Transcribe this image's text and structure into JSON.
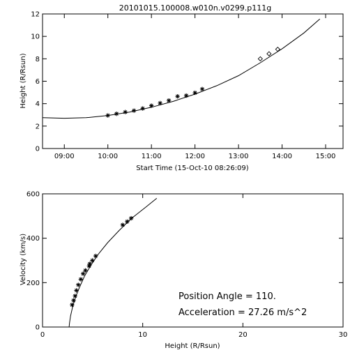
{
  "chart_data": [
    {
      "type": "scatter",
      "title": "20101015.100008.w010n.v0299.p111g",
      "xlabel": "Start Time (15-Oct-10 08:26:09)",
      "ylabel": "Height (R/Rsun)",
      "x_unit": "hours",
      "xlim": [
        "08:30",
        "15:24"
      ],
      "ylim": [
        0,
        12
      ],
      "x_ticks": [
        "09:00",
        "10:00",
        "11:00",
        "12:00",
        "13:00",
        "14:00",
        "15:00"
      ],
      "y_ticks": [
        "0",
        "2",
        "4",
        "6",
        "8",
        "10",
        "12"
      ],
      "series": [
        {
          "marker": "asterisk",
          "x": [
            "10:00",
            "10:12",
            "10:24",
            "10:36",
            "10:48",
            "11:00",
            "11:12",
            "11:24",
            "11:36",
            "11:48",
            "12:00",
            "12:10"
          ],
          "y": [
            2.95,
            3.1,
            3.25,
            3.38,
            3.57,
            3.82,
            4.05,
            4.28,
            4.65,
            4.72,
            4.97,
            5.3
          ]
        },
        {
          "marker": "diamond",
          "x": [
            "13:30",
            "13:42",
            "13:54"
          ],
          "y": [
            8.0,
            8.45,
            8.85
          ]
        },
        {
          "marker": "none",
          "line": "fit",
          "x": [
            "08:30",
            "09:00",
            "09:30",
            "10:00",
            "10:30",
            "11:00",
            "11:30",
            "12:00",
            "12:30",
            "13:00",
            "13:30",
            "14:00",
            "14:30",
            "14:52"
          ],
          "y": [
            2.75,
            2.7,
            2.75,
            2.95,
            3.25,
            3.68,
            4.2,
            4.85,
            5.6,
            6.5,
            7.65,
            8.9,
            10.3,
            11.55
          ]
        }
      ]
    },
    {
      "type": "scatter",
      "xlabel": "Height (R/Rsun)",
      "ylabel": "Velocity (km/s)",
      "xlim": [
        0,
        30
      ],
      "ylim": [
        0,
        600
      ],
      "x_ticks": [
        "0",
        "10",
        "20",
        "30"
      ],
      "y_ticks": [
        "0",
        "200",
        "400",
        "600"
      ],
      "annotations": [
        "Position Angle =  110.",
        "Acceleration =  27.26 m/s^2"
      ],
      "series": [
        {
          "marker": "asterisk",
          "x": [
            2.95,
            3.1,
            3.25,
            3.38,
            3.57,
            3.82,
            4.05,
            4.28,
            4.65,
            4.72,
            4.97,
            5.3,
            8.0,
            8.45,
            8.85
          ],
          "y": [
            100,
            120,
            140,
            165,
            190,
            215,
            240,
            255,
            275,
            285,
            300,
            320,
            460,
            475,
            490
          ]
        },
        {
          "marker": "none",
          "line": "fit",
          "x": [
            2.65,
            2.7,
            2.8,
            3.0,
            3.3,
            3.7,
            4.2,
            4.85,
            5.6,
            6.5,
            7.65,
            8.9,
            10.3,
            11.4
          ],
          "y": [
            0,
            20,
            50,
            90,
            135,
            180,
            230,
            280,
            330,
            380,
            435,
            490,
            540,
            580
          ]
        }
      ]
    }
  ]
}
